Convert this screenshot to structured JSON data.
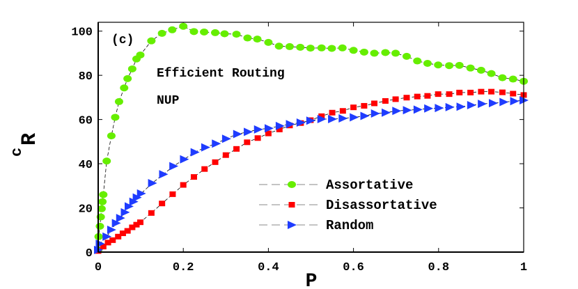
{
  "chart_data": {
    "type": "line",
    "panel_label": "(c)",
    "annotations": [
      "Efficient Routing",
      "NUP"
    ],
    "xlabel": "P",
    "ylabel": {
      "main": "R",
      "subscript": "c"
    },
    "xlim": [
      0,
      1
    ],
    "ylim": [
      0,
      104
    ],
    "xticks": [
      "0",
      "0.2",
      "0.4",
      "0.6",
      "0.8",
      "1"
    ],
    "xtick_values": [
      0,
      0.2,
      0.4,
      0.6,
      0.8,
      1
    ],
    "yticks": [
      "0",
      "20",
      "40",
      "60",
      "80",
      "100"
    ],
    "ytick_values": [
      0,
      20,
      40,
      60,
      80,
      100
    ],
    "grid": false,
    "legend_position": "bottom-right",
    "series": [
      {
        "name": "Assortative",
        "color": "#66ee00",
        "marker": "circle",
        "x": [
          0,
          0.001,
          0.004,
          0.006,
          0.008,
          0.01,
          0.012,
          0.02,
          0.031,
          0.04,
          0.049,
          0.061,
          0.069,
          0.08,
          0.09,
          0.099,
          0.125,
          0.15,
          0.174,
          0.2,
          0.225,
          0.249,
          0.275,
          0.297,
          0.325,
          0.351,
          0.374,
          0.4,
          0.425,
          0.45,
          0.475,
          0.499,
          0.525,
          0.549,
          0.574,
          0.6,
          0.625,
          0.649,
          0.675,
          0.699,
          0.725,
          0.75,
          0.774,
          0.799,
          0.825,
          0.849,
          0.875,
          0.9,
          0.924,
          0.95,
          0.975,
          1.0
        ],
        "y": [
          1,
          7,
          11.7,
          15.9,
          19.6,
          22.8,
          26,
          41.2,
          52.6,
          61,
          68.1,
          74.3,
          78.5,
          82.9,
          87.4,
          89.2,
          95.6,
          99,
          100.6,
          102.2,
          99.8,
          99.6,
          99.3,
          98.8,
          98.6,
          96.9,
          96.4,
          94.9,
          93.2,
          93,
          92.7,
          92.3,
          92.4,
          92.2,
          92.4,
          91.3,
          90.5,
          90,
          90.3,
          90,
          88.6,
          86.5,
          85.4,
          84.7,
          84.4,
          84.5,
          83.3,
          82.3,
          80.8,
          78.9,
          78.3,
          77.3
        ]
      },
      {
        "name": "Disassortative",
        "color": "#ff0000",
        "marker": "square",
        "x": [
          0,
          0.012,
          0.023,
          0.034,
          0.047,
          0.058,
          0.069,
          0.08,
          0.09,
          0.099,
          0.125,
          0.15,
          0.175,
          0.2,
          0.225,
          0.25,
          0.275,
          0.3,
          0.325,
          0.35,
          0.375,
          0.4,
          0.426,
          0.45,
          0.476,
          0.499,
          0.525,
          0.55,
          0.575,
          0.6,
          0.625,
          0.649,
          0.675,
          0.699,
          0.725,
          0.75,
          0.774,
          0.799,
          0.825,
          0.849,
          0.875,
          0.9,
          0.924,
          0.95,
          0.975,
          1.0
        ],
        "y": [
          0.5,
          2.5,
          4.3,
          5.4,
          7,
          8.5,
          9.6,
          11.2,
          12.4,
          13.5,
          17.7,
          22,
          26.2,
          30.4,
          34,
          37.6,
          40.7,
          43.9,
          46.7,
          49.7,
          51.6,
          53.7,
          55.5,
          57.3,
          58.4,
          59.7,
          61.5,
          63.1,
          63.9,
          65.5,
          66.2,
          67.3,
          68.4,
          69.2,
          69.9,
          70.4,
          70.7,
          71.5,
          71.5,
          72.2,
          72.2,
          72.6,
          72.6,
          72.3,
          71.7,
          71.1
        ]
      },
      {
        "name": "Random",
        "color": "#1f3cff",
        "marker": "triangle-right",
        "x": [
          0,
          0.004,
          0.02,
          0.031,
          0.042,
          0.052,
          0.063,
          0.072,
          0.083,
          0.091,
          0.101,
          0.127,
          0.153,
          0.177,
          0.202,
          0.227,
          0.252,
          0.277,
          0.301,
          0.327,
          0.352,
          0.376,
          0.401,
          0.427,
          0.451,
          0.476,
          0.499,
          0.525,
          0.55,
          0.575,
          0.601,
          0.626,
          0.651,
          0.676,
          0.701,
          0.726,
          0.751,
          0.776,
          0.801,
          0.826,
          0.852,
          0.877,
          0.902,
          0.928,
          0.953,
          0.978,
          1.0
        ],
        "y": [
          1,
          3.8,
          7,
          10.1,
          13.1,
          15.4,
          18,
          20.7,
          22.8,
          24.7,
          26.5,
          31.2,
          35.2,
          38.9,
          42,
          45.2,
          47.4,
          49.1,
          51.3,
          53.4,
          54.4,
          55.5,
          56,
          57.1,
          57.9,
          58.6,
          59.5,
          60.2,
          60.2,
          60.5,
          61,
          61.6,
          62.7,
          63.1,
          63.9,
          64.2,
          64.5,
          65,
          65.2,
          65.6,
          65.8,
          66.5,
          67.1,
          67.4,
          67.9,
          68.3,
          68.7
        ]
      }
    ]
  }
}
